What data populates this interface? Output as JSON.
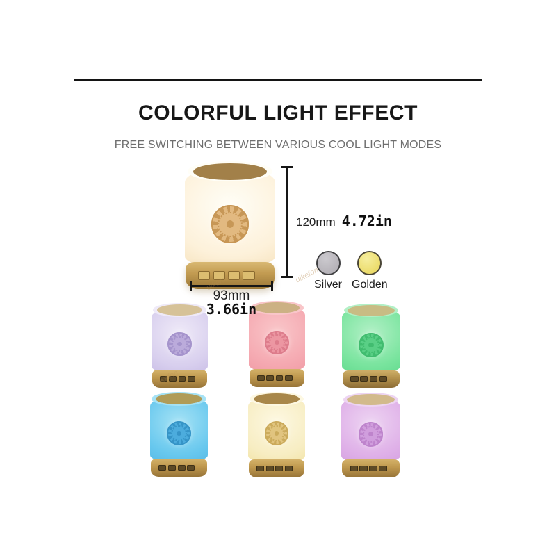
{
  "header": {
    "title": "COLORFUL LIGHT EFFECT",
    "subtitle": "FREE SWITCHING BETWEEN VARIOUS COOL LIGHT MODES"
  },
  "divider_color": "#141414",
  "dimensions": {
    "height_mm": "120mm",
    "height_in": "4.72in",
    "width_mm": "93mm",
    "width_in": "3.66in"
  },
  "color_options": [
    {
      "name": "Silver",
      "fill": "#b6b3b9",
      "fill_light": "#cbc9ce",
      "border": "#3f3f41"
    },
    {
      "name": "Golden",
      "fill": "#ecdc6c",
      "fill_light": "#f6ee9e",
      "border": "#4a4536"
    }
  ],
  "watermark_text": "ulkefon",
  "icons": {
    "medallion": "ornate-rosette-medallion"
  },
  "main_lamp": {
    "name": "warm-white",
    "colors": {
      "cap": "#a28049",
      "cap-edge": "#846538",
      "body-top": "#fffef7",
      "body": "#fdf1da",
      "body-edge": "#f5e0b8",
      "medal": "#e0b478",
      "medal-dark": "#c38f4a",
      "base-top": "#d9b973",
      "base": "#c29b51",
      "base-dark": "#9a7738",
      "button": "#dcbd70",
      "button-edge": "#8a6a30"
    }
  },
  "variants": [
    {
      "name": "lavender",
      "colors": {
        "cap": "#d6c298",
        "cap-edge": "#b89e6d",
        "body-top": "#efeaf8",
        "body": "#d8cfee",
        "body-edge": "#c6bae4",
        "medal": "#b8a7d9",
        "medal-dark": "#a08ec9",
        "base-top": "#d4b269",
        "base": "#c0994f",
        "base-dark": "#977438",
        "button": "#5d4a26",
        "button-edge": "#3e3118"
      }
    },
    {
      "name": "pink",
      "colors": {
        "cap": "#ccb184",
        "cap-edge": "#ab8d5c",
        "body-top": "#f9c6c9",
        "body": "#f5a9b1",
        "body-edge": "#ef98a3",
        "medal": "#ec94a0",
        "medal-dark": "#db7888",
        "base-top": "#d4b269",
        "base": "#c0994f",
        "base-dark": "#977438",
        "button": "#5d4a26",
        "button-edge": "#3e3118"
      }
    },
    {
      "name": "green",
      "colors": {
        "cap": "#c8bc84",
        "cap-edge": "#a59a58",
        "body-top": "#b2f0c6",
        "body": "#79e49e",
        "body-edge": "#5ed88b",
        "medal": "#54cd82",
        "medal-dark": "#3ab96a",
        "base-top": "#cdae67",
        "base": "#b5934e",
        "base-dark": "#8d6d36",
        "button": "#5d4a26",
        "button-edge": "#3e3118"
      }
    },
    {
      "name": "cyan",
      "colors": {
        "cap": "#b09c58",
        "cap-edge": "#8d7b40",
        "body-top": "#a5e2f5",
        "body": "#68c8ee",
        "body-edge": "#53b6e4",
        "medal": "#47a9dc",
        "medal-dark": "#2f8fc4",
        "base-top": "#d4b269",
        "base": "#c0994f",
        "base-dark": "#977438",
        "button": "#5d4a26",
        "button-edge": "#3e3118"
      }
    },
    {
      "name": "warm-yellow",
      "colors": {
        "cap": "#a8874a",
        "cap-edge": "#8a6c38",
        "body-top": "#fdf8e2",
        "body": "#f7edc2",
        "body-edge": "#f1e19f",
        "medal": "#dfc178",
        "medal-dark": "#c8a552",
        "base-top": "#d4b269",
        "base": "#c0994f",
        "base-dark": "#977438",
        "button": "#5d4a26",
        "button-edge": "#3e3118"
      }
    },
    {
      "name": "purple",
      "colors": {
        "cap": "#d2ba8c",
        "cap-edge": "#b29760",
        "body-top": "#edd4f2",
        "body": "#dfb0e8",
        "body-edge": "#d39ddf",
        "medal": "#cf9bdc",
        "medal-dark": "#bb7fca",
        "base-top": "#d4b269",
        "base": "#c0994f",
        "base-dark": "#977438",
        "button": "#5d4a26",
        "button-edge": "#3e3118"
      }
    }
  ]
}
